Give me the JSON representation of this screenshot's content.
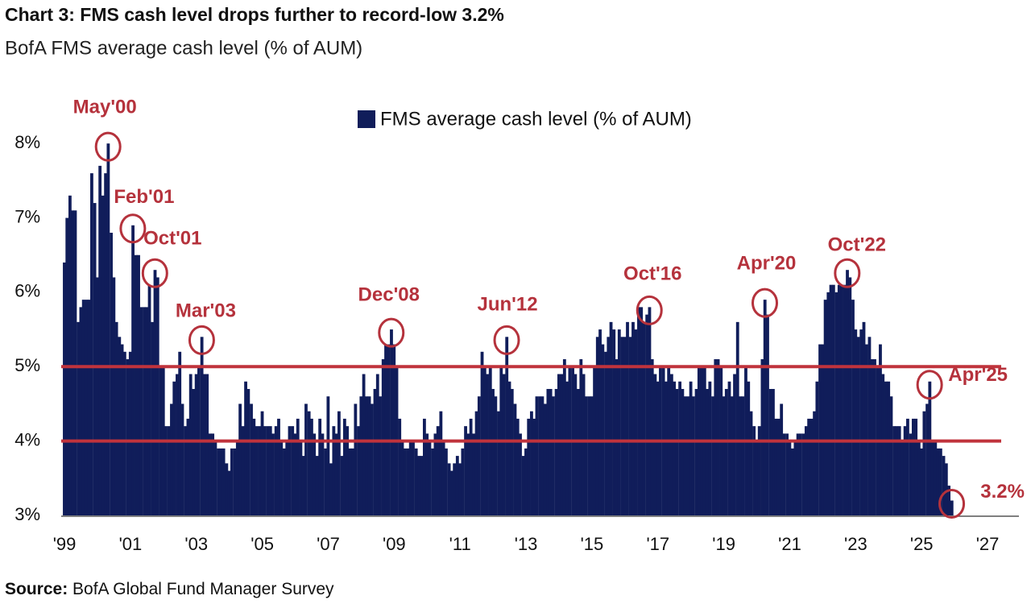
{
  "chart_data": {
    "type": "bar",
    "title": "Chart 3: FMS cash level drops further to record-low 3.2%",
    "subtitle": "BofA FMS average cash level (% of AUM)",
    "source_label": "Source:",
    "source_text": "BofA Global Fund Manager Survey",
    "legend": "top",
    "xlim": [
      1998.95,
      2028
    ],
    "xticks": [
      {
        "value": 1999,
        "label": "'99"
      },
      {
        "value": 2001,
        "label": "'01"
      },
      {
        "value": 2003,
        "label": "'03"
      },
      {
        "value": 2005,
        "label": "'05"
      },
      {
        "value": 2007,
        "label": "'07"
      },
      {
        "value": 2009,
        "label": "'09"
      },
      {
        "value": 2011,
        "label": "'11"
      },
      {
        "value": 2013,
        "label": "'13"
      },
      {
        "value": 2015,
        "label": "'15"
      },
      {
        "value": 2017,
        "label": "'17"
      },
      {
        "value": 2019,
        "label": "'19"
      },
      {
        "value": 2021,
        "label": "'21"
      },
      {
        "value": 2023,
        "label": "'23"
      },
      {
        "value": 2025,
        "label": "'25"
      },
      {
        "value": 2027,
        "label": "'27"
      }
    ],
    "ylim": [
      3,
      8.5
    ],
    "yticks": [
      {
        "value": 3,
        "label": "3%"
      },
      {
        "value": 4,
        "label": "4%"
      },
      {
        "value": 5,
        "label": "5%"
      },
      {
        "value": 6,
        "label": "6%"
      },
      {
        "value": 7,
        "label": "7%"
      },
      {
        "value": 8,
        "label": "8%"
      }
    ],
    "hlines": [
      5,
      4
    ],
    "hline_color": "#c0333c",
    "x": [
      1999,
      1999.08,
      1999.17,
      1999.25,
      1999.33,
      1999.42,
      1999.5,
      1999.58,
      1999.67,
      1999.75,
      1999.83,
      1999.92,
      2000,
      2000.08,
      2000.17,
      2000.25,
      2000.33,
      2000.42,
      2000.5,
      2000.58,
      2000.67,
      2000.75,
      2000.83,
      2000.92,
      2001,
      2001.08,
      2001.17,
      2001.25,
      2001.33,
      2001.42,
      2001.5,
      2001.58,
      2001.67,
      2001.75,
      2001.83,
      2001.92,
      2002,
      2002.08,
      2002.17,
      2002.25,
      2002.33,
      2002.42,
      2002.5,
      2002.58,
      2002.67,
      2002.75,
      2002.83,
      2002.92,
      2003,
      2003.08,
      2003.17,
      2003.25,
      2003.33,
      2003.42,
      2003.5,
      2003.58,
      2003.67,
      2003.75,
      2003.83,
      2003.92,
      2004,
      2004.08,
      2004.17,
      2004.25,
      2004.33,
      2004.42,
      2004.5,
      2004.58,
      2004.67,
      2004.75,
      2004.83,
      2004.92,
      2005,
      2005.08,
      2005.17,
      2005.25,
      2005.33,
      2005.42,
      2005.5,
      2005.58,
      2005.67,
      2005.75,
      2005.83,
      2005.92,
      2006,
      2006.08,
      2006.17,
      2006.25,
      2006.33,
      2006.42,
      2006.5,
      2006.58,
      2006.67,
      2006.75,
      2006.83,
      2006.92,
      2007,
      2007.08,
      2007.17,
      2007.25,
      2007.33,
      2007.42,
      2007.5,
      2007.58,
      2007.67,
      2007.75,
      2007.83,
      2007.92,
      2008,
      2008.08,
      2008.17,
      2008.25,
      2008.33,
      2008.42,
      2008.5,
      2008.58,
      2008.67,
      2008.75,
      2008.83,
      2008.92,
      2009,
      2009.08,
      2009.17,
      2009.25,
      2009.33,
      2009.42,
      2009.5,
      2009.58,
      2009.67,
      2009.75,
      2009.83,
      2009.92,
      2010,
      2010.08,
      2010.17,
      2010.25,
      2010.33,
      2010.42,
      2010.5,
      2010.58,
      2010.67,
      2010.75,
      2010.83,
      2010.92,
      2011,
      2011.08,
      2011.17,
      2011.25,
      2011.33,
      2011.42,
      2011.5,
      2011.58,
      2011.67,
      2011.75,
      2011.83,
      2011.92,
      2012,
      2012.08,
      2012.17,
      2012.25,
      2012.33,
      2012.42,
      2012.5,
      2012.58,
      2012.67,
      2012.75,
      2012.83,
      2012.92,
      2013,
      2013.08,
      2013.17,
      2013.25,
      2013.33,
      2013.42,
      2013.5,
      2013.58,
      2013.67,
      2013.75,
      2013.83,
      2013.92,
      2014,
      2014.08,
      2014.17,
      2014.25,
      2014.33,
      2014.42,
      2014.5,
      2014.58,
      2014.67,
      2014.75,
      2014.83,
      2014.92,
      2015,
      2015.08,
      2015.17,
      2015.25,
      2015.33,
      2015.42,
      2015.5,
      2015.58,
      2015.67,
      2015.75,
      2015.83,
      2015.92,
      2016,
      2016.08,
      2016.17,
      2016.25,
      2016.33,
      2016.42,
      2016.5,
      2016.58,
      2016.67,
      2016.75,
      2016.83,
      2016.92,
      2017,
      2017.08,
      2017.17,
      2017.25,
      2017.33,
      2017.42,
      2017.5,
      2017.58,
      2017.67,
      2017.75,
      2017.83,
      2017.92,
      2018,
      2018.08,
      2018.17,
      2018.25,
      2018.33,
      2018.42,
      2018.5,
      2018.58,
      2018.67,
      2018.75,
      2018.83,
      2018.92,
      2019,
      2019.08,
      2019.17,
      2019.25,
      2019.33,
      2019.42,
      2019.5,
      2019.58,
      2019.67,
      2019.75,
      2019.83,
      2019.92,
      2020,
      2020.08,
      2020.17,
      2020.25,
      2020.33,
      2020.42,
      2020.5,
      2020.58,
      2020.67,
      2020.75,
      2020.83,
      2020.92,
      2021,
      2021.08,
      2021.17,
      2021.25,
      2021.33,
      2021.42,
      2021.5,
      2021.58,
      2021.67,
      2021.75,
      2021.83,
      2021.92,
      2022,
      2022.08,
      2022.17,
      2022.25,
      2022.33,
      2022.42,
      2022.5,
      2022.58,
      2022.67,
      2022.75,
      2022.83,
      2022.92,
      2023,
      2023.08,
      2023.17,
      2023.25,
      2023.33,
      2023.42,
      2023.5,
      2023.58,
      2023.67,
      2023.75,
      2023.83,
      2023.92,
      2024,
      2024.08,
      2024.17,
      2024.25,
      2024.33,
      2024.42,
      2024.5,
      2024.58,
      2024.67,
      2024.75,
      2024.83,
      2024.92,
      2025,
      2025.08,
      2025.17,
      2025.25,
      2025.33,
      2025.42,
      2025.5,
      2025.58,
      2025.67,
      2025.75,
      2025.83,
      2025.92
    ],
    "series": [
      {
        "name": "FMS average cash level (% of AUM)",
        "color": "#101d5a",
        "values": [
          6.4,
          7.0,
          7.3,
          7.1,
          7.1,
          5.6,
          5.8,
          5.9,
          5.9,
          5.9,
          7.6,
          7.2,
          6.2,
          7.7,
          7.3,
          7.6,
          8.0,
          6.8,
          6.2,
          5.6,
          5.4,
          5.3,
          5.2,
          5.1,
          5.2,
          6.9,
          6.5,
          6.5,
          5.8,
          5.8,
          5.8,
          6.1,
          5.6,
          6.3,
          6.2,
          5.0,
          5.0,
          4.2,
          4.2,
          4.5,
          4.8,
          4.9,
          5.2,
          4.5,
          4.2,
          4.3,
          4.9,
          4.7,
          4.9,
          5.0,
          5.4,
          4.9,
          4.9,
          4.1,
          4.1,
          4.0,
          3.9,
          3.9,
          3.9,
          3.7,
          3.6,
          3.9,
          3.9,
          4.0,
          4.5,
          4.2,
          4.8,
          4.7,
          4.5,
          4.3,
          4.2,
          4.2,
          4.4,
          4.2,
          4.2,
          4.2,
          4.1,
          4.2,
          4.3,
          4.0,
          3.9,
          4.0,
          4.2,
          4.2,
          4.1,
          4.3,
          4.0,
          3.8,
          4.5,
          4.4,
          4.3,
          4.1,
          3.8,
          4.3,
          4.1,
          3.9,
          4.6,
          3.7,
          4.2,
          4.1,
          4.4,
          3.8,
          4.3,
          4.2,
          3.9,
          3.9,
          4.5,
          4.2,
          4.6,
          4.9,
          4.6,
          4.6,
          4.5,
          4.7,
          4.9,
          4.6,
          5.1,
          5.3,
          5.3,
          5.5,
          5.3,
          5.0,
          4.3,
          4.0,
          3.9,
          3.9,
          4.0,
          4.0,
          3.9,
          3.8,
          3.8,
          4.3,
          4.1,
          4.0,
          3.9,
          4.1,
          4.2,
          4.4,
          4.0,
          3.9,
          3.7,
          3.6,
          3.7,
          3.8,
          3.7,
          3.9,
          4.2,
          4.1,
          4.3,
          4.1,
          4.4,
          4.6,
          5.2,
          5.0,
          4.9,
          5.0,
          4.7,
          4.6,
          4.4,
          5.0,
          4.9,
          5.4,
          4.8,
          4.7,
          4.5,
          4.3,
          4.1,
          3.8,
          3.9,
          4.3,
          4.4,
          4.3,
          4.6,
          4.6,
          4.6,
          4.5,
          4.7,
          4.7,
          4.6,
          4.7,
          4.9,
          4.9,
          5.1,
          4.8,
          5.0,
          5.0,
          4.9,
          4.7,
          5.1,
          4.9,
          4.6,
          4.6,
          4.6,
          5.0,
          5.4,
          5.5,
          5.3,
          5.2,
          5.4,
          5.6,
          5.5,
          5.1,
          5.5,
          5.4,
          5.4,
          5.6,
          5.4,
          5.6,
          5.5,
          5.8,
          5.8,
          5.6,
          5.7,
          5.8,
          5.1,
          4.9,
          4.8,
          5.0,
          5.0,
          4.8,
          5.0,
          4.9,
          4.8,
          4.7,
          4.8,
          4.7,
          4.6,
          4.6,
          4.8,
          4.6,
          4.7,
          5.0,
          5.0,
          5.0,
          4.7,
          4.8,
          4.6,
          5.1,
          5.1,
          5.0,
          4.6,
          4.7,
          4.8,
          4.6,
          4.9,
          5.6,
          4.6,
          4.6,
          5.0,
          4.8,
          4.4,
          4.2,
          4.0,
          4.2,
          5.1,
          5.9,
          5.7,
          4.7,
          4.7,
          4.3,
          4.3,
          4.5,
          4.1,
          4.1,
          4.0,
          3.9,
          4.0,
          4.1,
          4.1,
          4.1,
          4.2,
          4.3,
          4.3,
          4.4,
          4.8,
          5.3,
          5.3,
          5.9,
          6.0,
          6.1,
          6.1,
          6.0,
          6.1,
          6.1,
          6.1,
          6.3,
          6.2,
          5.9,
          5.5,
          5.4,
          5.5,
          5.6,
          5.3,
          5.4,
          5.1,
          5.1,
          5.0,
          5.3,
          4.9,
          4.8,
          4.8,
          4.6,
          4.2,
          4.2,
          4.2,
          4.0,
          4.2,
          4.3,
          4.1,
          4.3,
          4.3,
          4.0,
          3.9,
          4.4,
          4.5,
          4.8,
          4.0,
          4.0,
          3.9,
          3.9,
          3.8,
          3.7,
          3.4,
          3.2
        ]
      }
    ],
    "annotation_color": "#b5323c",
    "annotations": [
      {
        "text": "May'00",
        "x": 2000.33,
        "y": 8.0
      },
      {
        "text": "Feb'01",
        "x": 2001.08,
        "y": 6.9
      },
      {
        "text": "Oct'01",
        "x": 2001.75,
        "y": 6.3
      },
      {
        "text": "Mar'03",
        "x": 2003.17,
        "y": 5.4
      },
      {
        "text": "Dec'08",
        "x": 2008.92,
        "y": 5.5
      },
      {
        "text": "Jun'12",
        "x": 2012.42,
        "y": 5.4
      },
      {
        "text": "Oct'16",
        "x": 2016.75,
        "y": 5.8
      },
      {
        "text": "Apr'20",
        "x": 2020.25,
        "y": 5.9
      },
      {
        "text": "Oct'22",
        "x": 2022.75,
        "y": 6.3
      },
      {
        "text": "Apr'25",
        "x": 2025.25,
        "y": 4.8
      },
      {
        "text": "3.2%",
        "x": 2025.92,
        "y": 3.2
      }
    ]
  }
}
